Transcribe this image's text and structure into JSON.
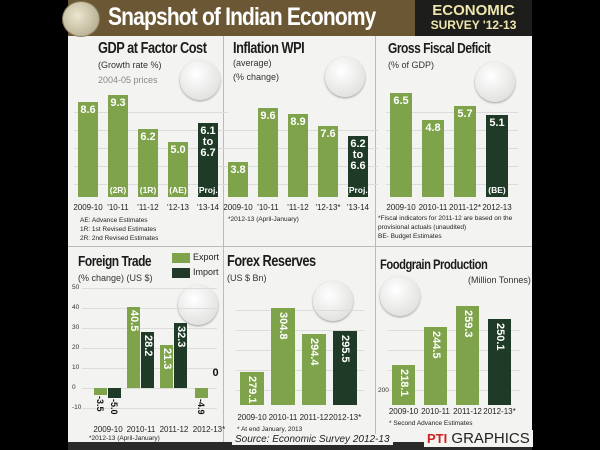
{
  "header": {
    "title": "Snapshot of Indian Economy",
    "badge_line1": "ECONOMIC",
    "badge_line2": "SURVEY '12-13"
  },
  "colors": {
    "estimate": "#7ea34b",
    "projection": "#1f3a26",
    "header": "#6b5733"
  },
  "footer": {
    "source": "Source: Economic Survey 2012-13",
    "credit_logo": "PTI",
    "credit": "GRAPHICS"
  },
  "chart_data": [
    {
      "id": "gdp",
      "type": "bar",
      "title": "GDP at Factor Cost",
      "subtitle": "(Growth rate %)",
      "subtitle2": "2004-05 prices",
      "icon": "boxes-icon",
      "categories": [
        "2009-10",
        "'10-11",
        "'11-12",
        "'12-13",
        "'13-14"
      ],
      "values": [
        8.6,
        9.3,
        6.2,
        5.0,
        6.7
      ],
      "labels": [
        "8.6",
        "9.3",
        "6.2",
        "5.0",
        "6.1\nto\n6.7"
      ],
      "sublabels": [
        "",
        "(2R)",
        "(1R)",
        "(AE)",
        "(Proj.)"
      ],
      "dark": [
        false,
        false,
        false,
        false,
        true
      ],
      "notes": [
        "AE: Advance Estimates",
        "1R: 1st Revised Estimates",
        "2R: 2nd Revised Estimates"
      ]
    },
    {
      "id": "inflation",
      "type": "bar",
      "title": "Inflation WPI",
      "subtitle": "(average)",
      "subtitle2": "(% change)",
      "icon": "balloon-icon",
      "categories": [
        "2009-10",
        "'10-11",
        "'11-12",
        "'12-13*",
        "'13-14"
      ],
      "values": [
        3.8,
        9.6,
        8.9,
        7.6,
        6.6
      ],
      "labels": [
        "3.8",
        "9.6",
        "8.9",
        "7.6",
        "6.2\nto\n6.6"
      ],
      "sublabels": [
        "",
        "",
        "",
        "",
        "(Proj.)"
      ],
      "dark": [
        false,
        false,
        false,
        false,
        true
      ],
      "notes": [
        "*2012-13 (April-January)"
      ]
    },
    {
      "id": "fiscal",
      "type": "bar",
      "title": "Gross Fiscal Deficit",
      "subtitle": "(% of GDP)",
      "icon": "declining-chart-icon",
      "categories": [
        "2009-10",
        "2010-11",
        "2011-12*",
        "2012-13"
      ],
      "values": [
        6.5,
        4.8,
        5.7,
        5.1
      ],
      "labels": [
        "6.5",
        "4.8",
        "5.7",
        "5.1"
      ],
      "sublabels": [
        "",
        "",
        "",
        "(BE)"
      ],
      "dark": [
        false,
        false,
        false,
        true
      ],
      "notes": [
        "*Fiscal indicators for 2011-12 are based on the",
        "provisional actuals (unaudited)",
        "BE- Budget Estimates"
      ]
    },
    {
      "id": "trade",
      "type": "bar",
      "title": "Foreign Trade",
      "subtitle": "(% change)  (US $)",
      "icon": "ship-icon",
      "categories": [
        "2009-10",
        "2010-11",
        "2011-12",
        "2012-13*"
      ],
      "yticks": [
        50,
        40,
        30,
        20,
        10,
        0,
        -10
      ],
      "ylim": [
        -10,
        50
      ],
      "legend": "top-right",
      "series": [
        {
          "name": "Export",
          "values": [
            -3.5,
            40.5,
            21.3,
            -4.9
          ],
          "labels": [
            "-3.5",
            "40.5",
            "21.3",
            "-4.9"
          ]
        },
        {
          "name": "Import",
          "values": [
            -5.0,
            28.2,
            32.3,
            0
          ],
          "labels": [
            "-5.0",
            "28.2",
            "32.3",
            "0"
          ]
        }
      ],
      "notes": [
        "*2012-13 (April-January)"
      ]
    },
    {
      "id": "forex",
      "type": "bar",
      "title": "Forex Reserves",
      "subtitle": "(US $ Bn)",
      "icon": "currency-icon",
      "categories": [
        "2009-10",
        "2010-11",
        "2011-12",
        "2012-13*"
      ],
      "values": [
        279.1,
        304.8,
        294.4,
        295.5
      ],
      "labels": [
        "279.1",
        "304.8",
        "294.4",
        "295.5"
      ],
      "dark": [
        false,
        false,
        false,
        true
      ],
      "notes": [
        "* At end January, 2013"
      ]
    },
    {
      "id": "food",
      "type": "bar",
      "title": "Foodgrain Production",
      "subtitle": "(Million Tonnes)",
      "icon": "wheat-icon",
      "categories": [
        "2009-10",
        "2010-11",
        "2011-12",
        "2012-13*"
      ],
      "yticks": [
        200
      ],
      "values": [
        218.1,
        244.5,
        259.3,
        250.1
      ],
      "labels": [
        "218.1",
        "244.5",
        "259.3",
        "250.1"
      ],
      "dark": [
        false,
        false,
        false,
        true
      ],
      "notes": [
        "* Second Advance Estimates"
      ]
    }
  ]
}
